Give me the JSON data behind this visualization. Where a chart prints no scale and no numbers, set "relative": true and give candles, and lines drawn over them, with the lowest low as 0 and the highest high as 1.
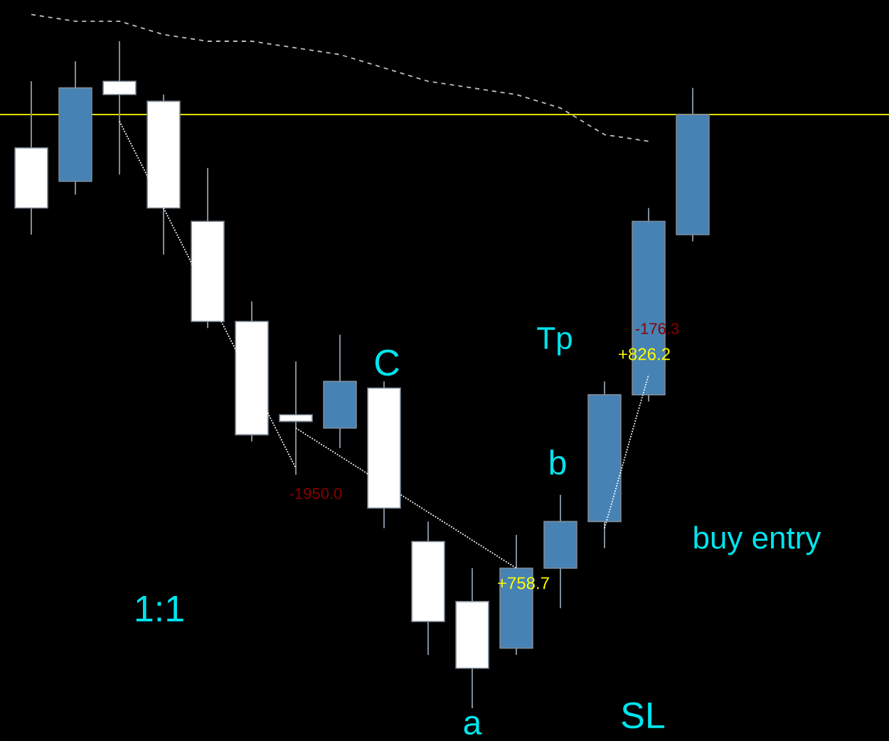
{
  "chart_data": {
    "type": "candlestick",
    "relative": true,
    "categories": [
      null,
      null,
      null,
      null,
      null,
      null,
      null,
      null,
      null,
      null,
      null,
      null,
      null,
      null,
      null,
      null
    ],
    "ohlc": [
      [
        0.84,
        0.94,
        0.71,
        0.75
      ],
      [
        0.79,
        0.97,
        0.77,
        0.93
      ],
      [
        0.94,
        1.0,
        0.8,
        0.92
      ],
      [
        0.91,
        0.92,
        0.68,
        0.75
      ],
      [
        0.73,
        0.81,
        0.57,
        0.58
      ],
      [
        0.58,
        0.61,
        0.4,
        0.41
      ],
      [
        0.44,
        0.52,
        0.35,
        0.43
      ],
      [
        0.42,
        0.56,
        0.39,
        0.49
      ],
      [
        0.48,
        0.49,
        0.27,
        0.3
      ],
      [
        0.25,
        0.28,
        0.08,
        0.13
      ],
      [
        0.16,
        0.21,
        0.0,
        0.06
      ],
      [
        0.09,
        0.26,
        0.08,
        0.21
      ],
      [
        0.21,
        0.32,
        0.15,
        0.28
      ],
      [
        0.28,
        0.49,
        0.24,
        0.47
      ],
      [
        0.47,
        0.75,
        0.46,
        0.73
      ],
      [
        0.71,
        0.93,
        0.7,
        0.89
      ]
    ],
    "colors": [
      "#ffffff",
      "#4682b4",
      "#ffffff",
      "#ffffff",
      "#ffffff",
      "#ffffff",
      "#ffffff",
      "#4682b4",
      "#ffffff",
      "#ffffff",
      "#ffffff",
      "#4682b4",
      "#4682b4",
      "#4682b4",
      "#4682b4",
      "#4682b4"
    ],
    "series": [
      {
        "type": "line",
        "color": "#c0c0c0",
        "line_style": "dashed",
        "values": [
          1.04,
          1.03,
          1.03,
          1.01,
          1.0,
          1.0,
          0.99,
          0.98,
          0.96,
          0.94,
          0.93,
          0.92,
          0.9,
          0.86,
          0.85,
          null
        ]
      },
      {
        "type": "line",
        "color": "#ffffff",
        "line_style": "dotted",
        "values": [
          null,
          null,
          0.88,
          null,
          null,
          null,
          0.36,
          null,
          null,
          null,
          null,
          null,
          null,
          null,
          null,
          null
        ]
      },
      {
        "type": "line",
        "color": "#ffffff",
        "line_style": "dotted",
        "values": [
          null,
          null,
          null,
          null,
          null,
          null,
          0.42,
          null,
          null,
          null,
          null,
          0.21,
          null,
          null,
          null,
          null
        ]
      },
      {
        "type": "line",
        "color": "#ffffff",
        "line_style": "dotted",
        "values": [
          null,
          null,
          null,
          null,
          null,
          null,
          null,
          null,
          null,
          null,
          null,
          null,
          null,
          0.27,
          0.5,
          null
        ]
      }
    ],
    "ref_lines": [
      {
        "axis": "y",
        "value": 0.89,
        "color": "#ffff00"
      }
    ],
    "annotations": [
      "-1950.0",
      "+758.7",
      "+826.2",
      "-176.3",
      "C",
      "Tp",
      "b",
      "buy entry",
      "a",
      "SL",
      "1:1"
    ]
  }
}
